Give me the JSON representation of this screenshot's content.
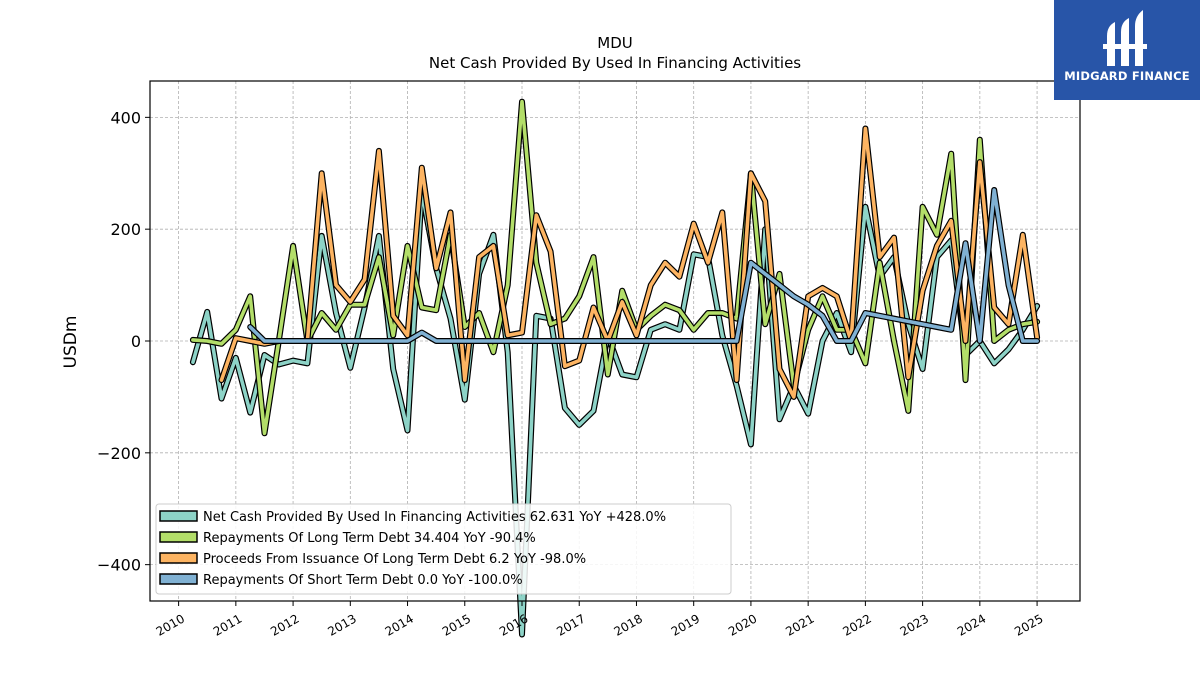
{
  "chart_data": {
    "type": "line",
    "ticker": "MDU",
    "title": "Net Cash Provided By Used In Financing Activities",
    "xlabel": "",
    "ylabel": "USDm",
    "xlim": [
      2009.5,
      2025.75
    ],
    "ylim": [
      -465,
      465
    ],
    "x_ticks": [
      "2010",
      "2011",
      "2012",
      "2013",
      "2014",
      "2015",
      "2016",
      "2017",
      "2018",
      "2019",
      "2020",
      "2021",
      "2022",
      "2023",
      "2024",
      "2025"
    ],
    "y_ticks": [
      "400",
      "200",
      "0",
      "−200",
      "−400"
    ],
    "y_tick_values": [
      400,
      200,
      0,
      -200,
      -400
    ],
    "grid": true,
    "legend_position": "lower-left",
    "series": [
      {
        "name": "Net Cash Provided By Used In Financing Activities",
        "legend": "Net Cash Provided By Used In Financing Activities  62.631 YoY +428.0%",
        "color": "#8dd3c7",
        "x": [
          2010.25,
          2010.5,
          2010.75,
          2011.0,
          2011.25,
          2011.5,
          2011.75,
          2012.0,
          2012.25,
          2012.5,
          2012.75,
          2013.0,
          2013.25,
          2013.5,
          2013.75,
          2014.0,
          2014.25,
          2014.5,
          2014.75,
          2015.0,
          2015.25,
          2015.5,
          2015.75,
          2016.0,
          2016.25,
          2016.5,
          2016.75,
          2017.0,
          2017.25,
          2017.5,
          2017.75,
          2018.0,
          2018.25,
          2018.5,
          2018.75,
          2019.0,
          2019.25,
          2019.5,
          2019.75,
          2020.0,
          2020.25,
          2020.5,
          2020.75,
          2021.0,
          2021.25,
          2021.5,
          2021.75,
          2022.0,
          2022.25,
          2022.5,
          2022.75,
          2023.0,
          2023.25,
          2023.5,
          2023.75,
          2024.0,
          2024.25,
          2024.5,
          2024.75,
          2025.0
        ],
        "values": [
          -38,
          52,
          -103,
          -30,
          -128,
          -25,
          -42,
          -35,
          -40,
          188,
          50,
          -48,
          60,
          188,
          -50,
          -160,
          268,
          130,
          40,
          -105,
          120,
          190,
          -20,
          -525,
          45,
          40,
          -120,
          -150,
          -125,
          10,
          -60,
          -65,
          20,
          30,
          20,
          155,
          150,
          10,
          -80,
          -185,
          200,
          -140,
          -80,
          -130,
          0,
          50,
          -20,
          240,
          115,
          150,
          30,
          -50,
          150,
          180,
          -25,
          0,
          -40,
          -15,
          20,
          62.631
        ]
      },
      {
        "name": "Repayments Of Long Term Debt",
        "legend": "Repayments Of Long Term Debt  34.404 YoY -90.4%",
        "color": "#b3de69",
        "x": [
          2010.25,
          2010.5,
          2010.75,
          2011.0,
          2011.25,
          2011.5,
          2011.75,
          2012.0,
          2012.25,
          2012.5,
          2012.75,
          2013.0,
          2013.25,
          2013.5,
          2013.75,
          2014.0,
          2014.25,
          2014.5,
          2014.75,
          2015.0,
          2015.25,
          2015.5,
          2015.75,
          2016.0,
          2016.25,
          2016.5,
          2016.75,
          2017.0,
          2017.25,
          2017.5,
          2017.75,
          2018.0,
          2018.25,
          2018.5,
          2018.75,
          2019.0,
          2019.25,
          2019.5,
          2019.75,
          2020.0,
          2020.25,
          2020.5,
          2020.75,
          2021.0,
          2021.25,
          2021.5,
          2021.75,
          2022.0,
          2022.25,
          2022.5,
          2022.75,
          2023.0,
          2023.25,
          2023.5,
          2023.75,
          2024.0,
          2024.25,
          2024.5,
          2024.75,
          2025.0
        ],
        "values": [
          2,
          0,
          -5,
          20,
          80,
          -165,
          0,
          170,
          0,
          50,
          20,
          65,
          65,
          150,
          10,
          170,
          60,
          55,
          190,
          25,
          50,
          -20,
          100,
          428,
          140,
          30,
          40,
          80,
          150,
          -60,
          90,
          20,
          45,
          65,
          55,
          20,
          50,
          50,
          40,
          300,
          30,
          120,
          -80,
          20,
          80,
          20,
          20,
          -40,
          140,
          0,
          -125,
          240,
          190,
          335,
          -70,
          360,
          0,
          20,
          30,
          34.404
        ]
      },
      {
        "name": "Proceeds From Issuance Of Long Term Debt",
        "legend": "Proceeds From Issuance Of Long Term Debt  6.2 YoY -98.0%",
        "color": "#fdb462",
        "x": [
          2010.75,
          2011.0,
          2011.25,
          2011.5,
          2011.75,
          2012.0,
          2012.25,
          2012.5,
          2012.75,
          2013.0,
          2013.25,
          2013.5,
          2013.75,
          2014.0,
          2014.25,
          2014.5,
          2014.75,
          2015.0,
          2015.25,
          2015.5,
          2015.75,
          2016.0,
          2016.25,
          2016.5,
          2016.75,
          2017.0,
          2017.25,
          2017.5,
          2017.75,
          2018.0,
          2018.25,
          2018.5,
          2018.75,
          2019.0,
          2019.25,
          2019.5,
          2019.75,
          2020.0,
          2020.25,
          2020.5,
          2020.75,
          2021.0,
          2021.25,
          2021.5,
          2021.75,
          2022.0,
          2022.25,
          2022.5,
          2022.75,
          2023.0,
          2023.25,
          2023.5,
          2023.75,
          2024.0,
          2024.25,
          2024.5,
          2024.75,
          2025.0
        ],
        "values": [
          -70,
          5,
          0,
          -5,
          0,
          0,
          0,
          300,
          100,
          70,
          110,
          340,
          45,
          10,
          310,
          130,
          230,
          -70,
          150,
          170,
          10,
          15,
          225,
          160,
          -45,
          -35,
          60,
          0,
          70,
          10,
          100,
          140,
          115,
          210,
          140,
          230,
          -70,
          300,
          250,
          -50,
          -100,
          80,
          95,
          80,
          0,
          380,
          150,
          185,
          -65,
          90,
          170,
          215,
          0,
          320,
          60,
          30,
          190,
          6.2
        ]
      },
      {
        "name": "Repayments Of Short Term Debt",
        "legend": "Repayments Of Short Term Debt  0.0 YoY -100.0%",
        "color": "#80b1d3",
        "x": [
          2011.25,
          2011.5,
          2011.75,
          2012.0,
          2012.25,
          2012.5,
          2012.75,
          2013.0,
          2013.25,
          2013.5,
          2013.75,
          2014.0,
          2014.25,
          2014.5,
          2014.75,
          2015.0,
          2015.25,
          2015.5,
          2015.75,
          2016.0,
          2016.25,
          2016.5,
          2016.75,
          2017.0,
          2017.25,
          2017.5,
          2017.75,
          2018.0,
          2018.25,
          2018.5,
          2018.75,
          2019.0,
          2019.25,
          2019.5,
          2019.75,
          2020.0,
          2020.25,
          2020.5,
          2020.75,
          2021.0,
          2021.25,
          2021.5,
          2021.75,
          2022.0,
          2022.25,
          2022.5,
          2022.75,
          2023.0,
          2023.25,
          2023.5,
          2023.75,
          2024.0,
          2024.25,
          2024.5,
          2024.75,
          2025.0
        ],
        "values": [
          25,
          0,
          0,
          0,
          0,
          0,
          0,
          0,
          0,
          0,
          0,
          0,
          15,
          0,
          0,
          0,
          0,
          0,
          0,
          0,
          0,
          0,
          0,
          0,
          0,
          0,
          0,
          0,
          0,
          0,
          0,
          0,
          0,
          0,
          0,
          140,
          120,
          100,
          80,
          65,
          45,
          0,
          0,
          50,
          45,
          40,
          35,
          30,
          25,
          20,
          175,
          0,
          270,
          100,
          0,
          0
        ]
      }
    ]
  },
  "logo": {
    "text": "MIDGARD FINANCE"
  }
}
